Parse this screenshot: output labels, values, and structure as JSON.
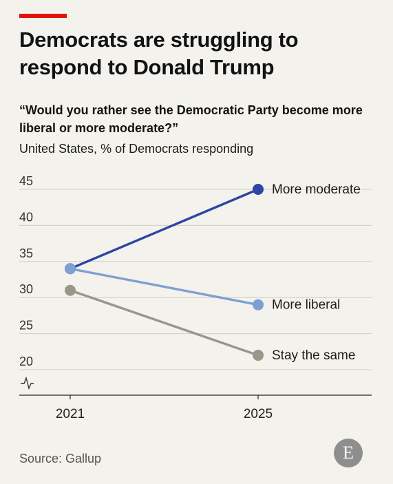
{
  "header": {
    "title": "Democrats are struggling to respond to Donald Trump",
    "subtitle": "“Would you rather see the Democratic Party become more liberal or more moderate?”",
    "subtitle2": "United States, % of Democrats responding"
  },
  "footer": {
    "source": "Source: Gallup",
    "logo_letter": "E"
  },
  "chart_data": {
    "type": "line",
    "x": [
      "2021",
      "2025"
    ],
    "ylim": [
      20,
      45
    ],
    "yticks": [
      45,
      40,
      35,
      30,
      25,
      20
    ],
    "axis_break": true,
    "grid": true,
    "series": [
      {
        "name": "More moderate",
        "values": [
          34,
          45
        ],
        "color": "#2e45a1"
      },
      {
        "name": "More liberal",
        "values": [
          34,
          29
        ],
        "color": "#7f9fd3"
      },
      {
        "name": "Stay the same",
        "values": [
          31,
          22
        ],
        "color": "#98978a"
      }
    ]
  }
}
